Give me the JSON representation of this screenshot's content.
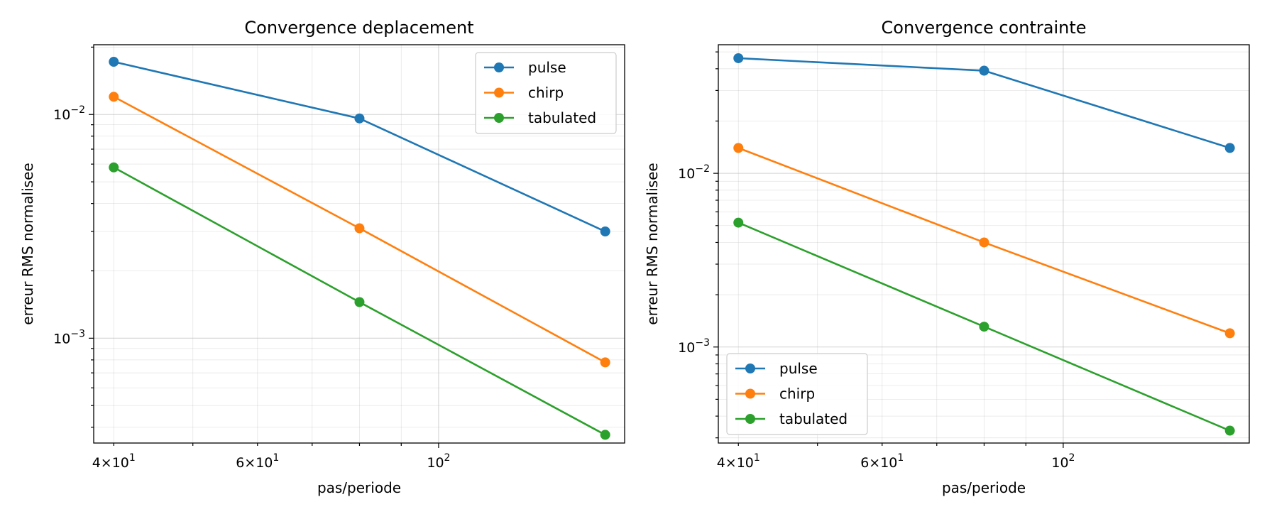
{
  "chart_data": [
    {
      "type": "line",
      "title": "Convergence deplacement",
      "xlabel": "pas/periode",
      "ylabel": "erreur RMS normalisee",
      "xscale": "log",
      "yscale": "log",
      "xlim": [
        37.8,
        169
      ],
      "ylim": [
        0.00034,
        0.0205
      ],
      "grid": "both (major and minor)",
      "legend": "upper right",
      "x": [
        40,
        80,
        160
      ],
      "xticks": [
        {
          "value": 40,
          "base": "4",
          "exp": "1"
        },
        {
          "value": 60,
          "base": "6",
          "exp": "1"
        },
        {
          "value": 100,
          "base": "10",
          "exp": "2"
        }
      ],
      "yticks": [
        {
          "value": 0.001,
          "base": "10",
          "exp": "−3"
        },
        {
          "value": 0.01,
          "base": "10",
          "exp": "−2"
        }
      ],
      "series": [
        {
          "name": "pulse",
          "color": "#1f77b4",
          "values": [
            0.0172,
            0.0096,
            0.003
          ]
        },
        {
          "name": "chirp",
          "color": "#ff7f0e",
          "values": [
            0.012,
            0.0031,
            0.00078
          ]
        },
        {
          "name": "tabulated",
          "color": "#2ca02c",
          "values": [
            0.0058,
            0.00145,
            0.00037
          ]
        }
      ]
    },
    {
      "type": "line",
      "title": "Convergence contrainte",
      "xlabel": "pas/periode",
      "ylabel": "erreur RMS normalisee",
      "xscale": "log",
      "yscale": "log",
      "xlim": [
        37.8,
        169
      ],
      "ylim": [
        0.00028,
        0.055
      ],
      "grid": "both (major and minor)",
      "legend": "lower left",
      "x": [
        40,
        80,
        160
      ],
      "xticks": [
        {
          "value": 40,
          "base": "4",
          "exp": "1"
        },
        {
          "value": 60,
          "base": "6",
          "exp": "1"
        },
        {
          "value": 100,
          "base": "10",
          "exp": "2"
        }
      ],
      "yticks": [
        {
          "value": 0.001,
          "base": "10",
          "exp": "−3"
        },
        {
          "value": 0.01,
          "base": "10",
          "exp": "−2"
        }
      ],
      "series": [
        {
          "name": "pulse",
          "color": "#1f77b4",
          "values": [
            0.046,
            0.039,
            0.014
          ]
        },
        {
          "name": "chirp",
          "color": "#ff7f0e",
          "values": [
            0.014,
            0.004,
            0.0012
          ]
        },
        {
          "name": "tabulated",
          "color": "#2ca02c",
          "values": [
            0.0052,
            0.00131,
            0.00033
          ]
        }
      ]
    }
  ]
}
